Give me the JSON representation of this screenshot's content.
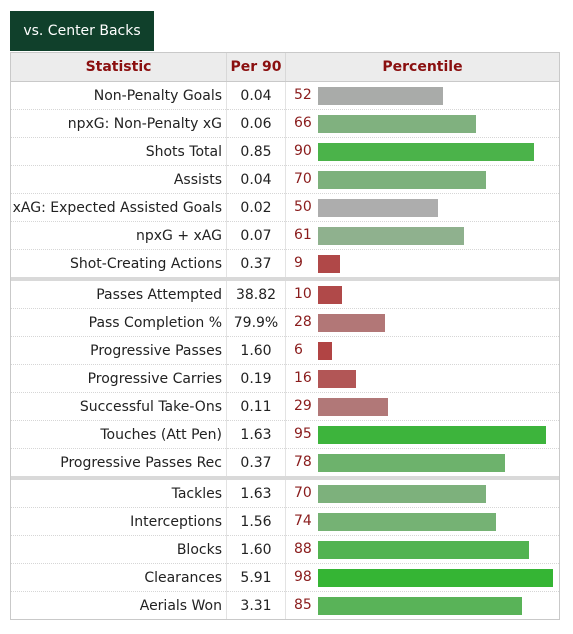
{
  "tab": {
    "label": "vs. Center Backs"
  },
  "headers": {
    "statistic": "Statistic",
    "per90": "Per 90",
    "percentile": "Percentile"
  },
  "rows": [
    {
      "stat": "Non-Penalty Goals",
      "per90": "0.04",
      "percentile": 52,
      "bar_color": "#a9aba9",
      "group_end": false
    },
    {
      "stat": "npxG: Non-Penalty xG",
      "per90": "0.06",
      "percentile": 66,
      "bar_color": "#80b17f",
      "group_end": false
    },
    {
      "stat": "Shots Total",
      "per90": "0.85",
      "percentile": 90,
      "bar_color": "#4bb34a",
      "group_end": false
    },
    {
      "stat": "Assists",
      "per90": "0.04",
      "percentile": 70,
      "bar_color": "#7db17c",
      "group_end": false
    },
    {
      "stat": "xAG: Expected Assisted Goals",
      "per90": "0.02",
      "percentile": 50,
      "bar_color": "#adadad",
      "group_end": false
    },
    {
      "stat": "npxG + xAG",
      "per90": "0.07",
      "percentile": 61,
      "bar_color": "#8fb18e",
      "group_end": false
    },
    {
      "stat": "Shot-Creating Actions",
      "per90": "0.37",
      "percentile": 9,
      "bar_color": "#b04848",
      "group_end": true
    },
    {
      "stat": "Passes Attempted",
      "per90": "38.82",
      "percentile": 10,
      "bar_color": "#b04949",
      "group_end": false
    },
    {
      "stat": "Pass Completion %",
      "per90": "79.9%",
      "percentile": 28,
      "bar_color": "#b27777",
      "group_end": false
    },
    {
      "stat": "Progressive Passes",
      "per90": "1.60",
      "percentile": 6,
      "bar_color": "#b14444",
      "group_end": false
    },
    {
      "stat": "Progressive Carries",
      "per90": "0.19",
      "percentile": 16,
      "bar_color": "#b25656",
      "group_end": false
    },
    {
      "stat": "Successful Take-Ons",
      "per90": "0.11",
      "percentile": 29,
      "bar_color": "#b17878",
      "group_end": false
    },
    {
      "stat": "Touches (Att Pen)",
      "per90": "1.63",
      "percentile": 95,
      "bar_color": "#3db43c",
      "group_end": false
    },
    {
      "stat": "Progressive Passes Rec",
      "per90": "0.37",
      "percentile": 78,
      "bar_color": "#6db26c",
      "group_end": true
    },
    {
      "stat": "Tackles",
      "per90": "1.63",
      "percentile": 70,
      "bar_color": "#7db17c",
      "group_end": false
    },
    {
      "stat": "Interceptions",
      "per90": "1.56",
      "percentile": 74,
      "bar_color": "#75b274",
      "group_end": false
    },
    {
      "stat": "Blocks",
      "per90": "1.60",
      "percentile": 88,
      "bar_color": "#52b351",
      "group_end": false
    },
    {
      "stat": "Clearances",
      "per90": "5.91",
      "percentile": 98,
      "bar_color": "#35b534",
      "group_end": false
    },
    {
      "stat": "Aerials Won",
      "per90": "3.31",
      "percentile": 85,
      "bar_color": "#59b358",
      "group_end": false
    }
  ]
}
